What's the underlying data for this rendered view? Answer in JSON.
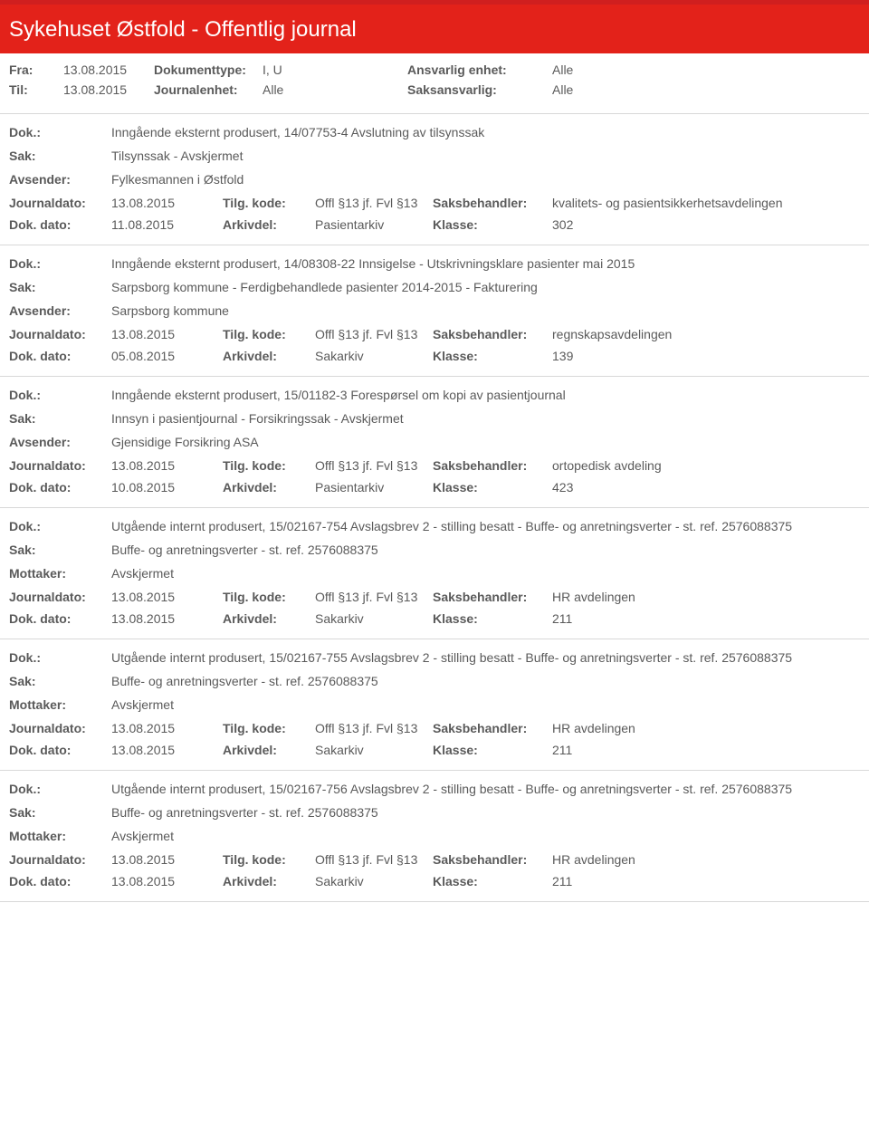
{
  "header": {
    "title": "Sykehuset Østfold - Offentlig journal"
  },
  "filters": {
    "fra_label": "Fra:",
    "fra_value": "13.08.2015",
    "til_label": "Til:",
    "til_value": "13.08.2015",
    "doktype_label": "Dokumenttype:",
    "doktype_value": "I, U",
    "journalenhet_label": "Journalenhet:",
    "journalenhet_value": "Alle",
    "ansvarlig_label": "Ansvarlig enhet:",
    "ansvarlig_value": "Alle",
    "saksansvarlig_label": "Saksansvarlig:",
    "saksansvarlig_value": "Alle"
  },
  "labels": {
    "dok": "Dok.:",
    "sak": "Sak:",
    "avsender": "Avsender:",
    "mottaker": "Mottaker:",
    "journaldato": "Journaldato:",
    "tilgkode": "Tilg. kode:",
    "saksbehandler": "Saksbehandler:",
    "dokdato": "Dok. dato:",
    "arkivdel": "Arkivdel:",
    "klasse": "Klasse:"
  },
  "entries": [
    {
      "dok": "Inngående eksternt produsert, 14/07753-4 Avslutning av tilsynssak",
      "sak": "Tilsynssak - Avskjermet",
      "party_label": "Avsender:",
      "party": "Fylkesmannen i Østfold",
      "journaldato": "13.08.2015",
      "tilgkode": "Offl §13 jf. Fvl §13",
      "saksbehandler": "kvalitets- og pasientsikkerhetsavdelingen",
      "dokdato": "11.08.2015",
      "arkivdel": "Pasientarkiv",
      "klasse": "302"
    },
    {
      "dok": "Inngående eksternt produsert, 14/08308-22 Innsigelse - Utskrivningsklare pasienter mai 2015",
      "sak": "Sarpsborg kommune - Ferdigbehandlede pasienter 2014-2015 - Fakturering",
      "party_label": "Avsender:",
      "party": "Sarpsborg kommune",
      "journaldato": "13.08.2015",
      "tilgkode": "Offl §13 jf. Fvl §13",
      "saksbehandler": "regnskapsavdelingen",
      "dokdato": "05.08.2015",
      "arkivdel": "Sakarkiv",
      "klasse": "139"
    },
    {
      "dok": "Inngående eksternt produsert, 15/01182-3 Forespørsel om kopi av pasientjournal",
      "sak": "Innsyn i pasientjournal - Forsikringssak - Avskjermet",
      "party_label": "Avsender:",
      "party": "Gjensidige Forsikring ASA",
      "journaldato": "13.08.2015",
      "tilgkode": "Offl §13 jf. Fvl §13",
      "saksbehandler": "ortopedisk avdeling",
      "dokdato": "10.08.2015",
      "arkivdel": "Pasientarkiv",
      "klasse": "423"
    },
    {
      "dok": "Utgående internt produsert, 15/02167-754 Avslagsbrev 2 - stilling besatt - Buffe- og anretningsverter  - st. ref. 2576088375",
      "sak": "Buffe- og anretningsverter  - st. ref. 2576088375",
      "party_label": "Mottaker:",
      "party": "Avskjermet",
      "journaldato": "13.08.2015",
      "tilgkode": "Offl §13 jf. Fvl §13",
      "saksbehandler": "HR avdelingen",
      "dokdato": "13.08.2015",
      "arkivdel": "Sakarkiv",
      "klasse": "211"
    },
    {
      "dok": "Utgående internt produsert, 15/02167-755 Avslagsbrev 2 - stilling besatt - Buffe- og anretningsverter  - st. ref. 2576088375",
      "sak": "Buffe- og anretningsverter  - st. ref. 2576088375",
      "party_label": "Mottaker:",
      "party": "Avskjermet",
      "journaldato": "13.08.2015",
      "tilgkode": "Offl §13 jf. Fvl §13",
      "saksbehandler": "HR avdelingen",
      "dokdato": "13.08.2015",
      "arkivdel": "Sakarkiv",
      "klasse": "211"
    },
    {
      "dok": "Utgående internt produsert, 15/02167-756 Avslagsbrev 2 - stilling besatt - Buffe- og anretningsverter  - st. ref. 2576088375",
      "sak": "Buffe- og anretningsverter  - st. ref. 2576088375",
      "party_label": "Mottaker:",
      "party": "Avskjermet",
      "journaldato": "13.08.2015",
      "tilgkode": "Offl §13 jf. Fvl §13",
      "saksbehandler": "HR avdelingen",
      "dokdato": "13.08.2015",
      "arkivdel": "Sakarkiv",
      "klasse": "211"
    }
  ]
}
